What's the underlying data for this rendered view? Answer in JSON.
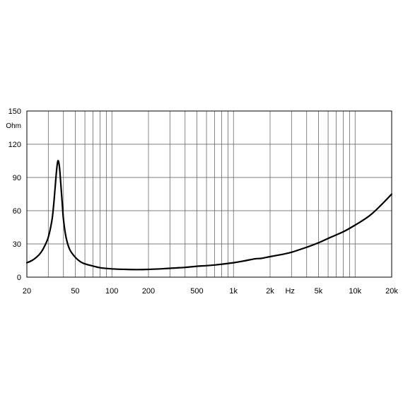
{
  "chart_data": {
    "type": "line",
    "x_scale": "log",
    "xlim": [
      20,
      20000
    ],
    "ylim": [
      0,
      150
    ],
    "grid": true,
    "y_unit": "Ohm",
    "x_unit": "Hz",
    "y_ticks": [
      {
        "value": 0,
        "label": "0"
      },
      {
        "value": 30,
        "label": "30"
      },
      {
        "value": 60,
        "label": "60"
      },
      {
        "value": 90,
        "label": "90"
      },
      {
        "value": 120,
        "label": "120"
      },
      {
        "value": 150,
        "label": "150"
      }
    ],
    "x_ticks": [
      {
        "value": 20,
        "label": "20"
      },
      {
        "value": 50,
        "label": "50"
      },
      {
        "value": 100,
        "label": "100"
      },
      {
        "value": 200,
        "label": "200"
      },
      {
        "value": 500,
        "label": "500"
      },
      {
        "value": 1000,
        "label": "1k"
      },
      {
        "value": 2000,
        "label": "2k"
      },
      {
        "value": 5000,
        "label": "5k"
      },
      {
        "value": 10000,
        "label": "10k"
      },
      {
        "value": 20000,
        "label": "20k"
      }
    ],
    "series": [
      {
        "color": "#000000",
        "points": [
          [
            20,
            13
          ],
          [
            22,
            15
          ],
          [
            24,
            18
          ],
          [
            26,
            22
          ],
          [
            28,
            28
          ],
          [
            30,
            36
          ],
          [
            32,
            50
          ],
          [
            33,
            62
          ],
          [
            34,
            78
          ],
          [
            35,
            95
          ],
          [
            36,
            105
          ],
          [
            37,
            100
          ],
          [
            38,
            85
          ],
          [
            39,
            68
          ],
          [
            40,
            52
          ],
          [
            42,
            36
          ],
          [
            45,
            25
          ],
          [
            50,
            18
          ],
          [
            55,
            14
          ],
          [
            60,
            12
          ],
          [
            70,
            10
          ],
          [
            80,
            8.5
          ],
          [
            100,
            7.5
          ],
          [
            130,
            7
          ],
          [
            160,
            6.8
          ],
          [
            200,
            7
          ],
          [
            250,
            7.5
          ],
          [
            300,
            8
          ],
          [
            400,
            8.8
          ],
          [
            500,
            9.8
          ],
          [
            700,
            11
          ],
          [
            1000,
            13
          ],
          [
            1200,
            14.5
          ],
          [
            1500,
            16.5
          ],
          [
            1700,
            17
          ],
          [
            2000,
            18.5
          ],
          [
            2500,
            20.5
          ],
          [
            3000,
            22.5
          ],
          [
            4000,
            27
          ],
          [
            5000,
            31
          ],
          [
            6000,
            35
          ],
          [
            8000,
            41
          ],
          [
            10000,
            47
          ],
          [
            13000,
            55
          ],
          [
            16000,
            64
          ],
          [
            20000,
            75
          ]
        ]
      }
    ]
  }
}
